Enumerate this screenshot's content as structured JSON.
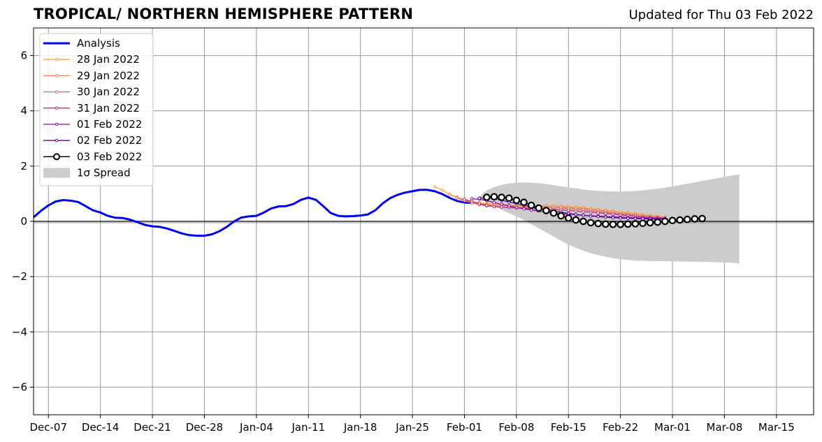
{
  "header": {
    "title": "TROPICAL/ NORTHERN HEMISPHERE PATTERN",
    "updated": "Updated for Thu 03 Feb 2022"
  },
  "chart_data": {
    "type": "line",
    "title": "TROPICAL/ NORTHERN HEMISPHERE PATTERN",
    "xlabel": "",
    "ylabel": "",
    "x_axis": "date",
    "xlim": [
      "2021-12-05",
      "2022-03-20"
    ],
    "ylim": [
      -7,
      7
    ],
    "grid": true,
    "legend_position": "top-left",
    "x_ticks": [
      "2021-12-07",
      "2021-12-14",
      "2021-12-21",
      "2021-12-28",
      "2022-01-04",
      "2022-01-11",
      "2022-01-18",
      "2022-01-25",
      "2022-02-01",
      "2022-02-08",
      "2022-02-15",
      "2022-02-22",
      "2022-03-01",
      "2022-03-08",
      "2022-03-15"
    ],
    "x_tick_labels": [
      "Dec-07",
      "Dec-14",
      "Dec-21",
      "Dec-28",
      "Jan-04",
      "Jan-11",
      "Jan-18",
      "Jan-25",
      "Feb-01",
      "Feb-08",
      "Feb-15",
      "Feb-22",
      "Mar-01",
      "Mar-08",
      "Mar-15"
    ],
    "y_ticks": [
      -6,
      -4,
      -2,
      0,
      2,
      4,
      6
    ],
    "y_tick_labels": [
      "−6",
      "−4",
      "−2",
      "0",
      "2",
      "4",
      "6"
    ],
    "series": [
      {
        "name": "Analysis",
        "color": "#0000ee",
        "marker": "none",
        "points": [
          [
            "2021-12-05",
            0.15
          ],
          [
            "2021-12-06",
            0.38
          ],
          [
            "2021-12-07",
            0.58
          ],
          [
            "2021-12-08",
            0.72
          ],
          [
            "2021-12-09",
            0.77
          ],
          [
            "2021-12-10",
            0.75
          ],
          [
            "2021-12-11",
            0.7
          ],
          [
            "2021-12-12",
            0.55
          ],
          [
            "2021-12-13",
            0.4
          ],
          [
            "2021-12-14",
            0.32
          ],
          [
            "2021-12-15",
            0.2
          ],
          [
            "2021-12-16",
            0.13
          ],
          [
            "2021-12-17",
            0.12
          ],
          [
            "2021-12-18",
            0.06
          ],
          [
            "2021-12-19",
            -0.03
          ],
          [
            "2021-12-20",
            -0.13
          ],
          [
            "2021-12-21",
            -0.18
          ],
          [
            "2021-12-22",
            -0.2
          ],
          [
            "2021-12-23",
            -0.26
          ],
          [
            "2021-12-24",
            -0.35
          ],
          [
            "2021-12-25",
            -0.44
          ],
          [
            "2021-12-26",
            -0.5
          ],
          [
            "2021-12-27",
            -0.52
          ],
          [
            "2021-12-28",
            -0.52
          ],
          [
            "2021-12-29",
            -0.47
          ],
          [
            "2021-12-30",
            -0.36
          ],
          [
            "2021-12-31",
            -0.2
          ],
          [
            "2022-01-01",
            0.0
          ],
          [
            "2022-01-02",
            0.14
          ],
          [
            "2022-01-03",
            0.18
          ],
          [
            "2022-01-04",
            0.2
          ],
          [
            "2022-01-05",
            0.32
          ],
          [
            "2022-01-06",
            0.47
          ],
          [
            "2022-01-07",
            0.54
          ],
          [
            "2022-01-08",
            0.55
          ],
          [
            "2022-01-09",
            0.63
          ],
          [
            "2022-01-10",
            0.78
          ],
          [
            "2022-01-11",
            0.86
          ],
          [
            "2022-01-12",
            0.78
          ],
          [
            "2022-01-13",
            0.55
          ],
          [
            "2022-01-14",
            0.3
          ],
          [
            "2022-01-15",
            0.2
          ],
          [
            "2022-01-16",
            0.18
          ],
          [
            "2022-01-17",
            0.19
          ],
          [
            "2022-01-18",
            0.21
          ],
          [
            "2022-01-19",
            0.25
          ],
          [
            "2022-01-20",
            0.4
          ],
          [
            "2022-01-21",
            0.65
          ],
          [
            "2022-01-22",
            0.84
          ],
          [
            "2022-01-23",
            0.96
          ],
          [
            "2022-01-24",
            1.04
          ],
          [
            "2022-01-25",
            1.09
          ],
          [
            "2022-01-26",
            1.14
          ],
          [
            "2022-01-27",
            1.14
          ],
          [
            "2022-01-28",
            1.09
          ],
          [
            "2022-01-29",
            0.99
          ],
          [
            "2022-01-30",
            0.85
          ],
          [
            "2022-01-31",
            0.74
          ],
          [
            "2022-02-01",
            0.68
          ],
          [
            "2022-02-02",
            0.67
          ]
        ]
      },
      {
        "name": "28 Jan 2022",
        "color": "#fca636",
        "marker": "dot",
        "start": "2022-01-28",
        "values": [
          1.25,
          1.13,
          0.98,
          0.87,
          0.78,
          0.72,
          0.67,
          0.64,
          0.61,
          0.59,
          0.58,
          0.57,
          0.57,
          0.57,
          0.57,
          0.56,
          0.56,
          0.55,
          0.53,
          0.51,
          0.49,
          0.46,
          0.43,
          0.4,
          0.37,
          0.34,
          0.31,
          0.28,
          0.24,
          0.21,
          0.18
        ]
      },
      {
        "name": "29 Jan 2022",
        "color": "#f2844b",
        "marker": "dot",
        "start": "2022-01-30",
        "values": [
          0.97,
          0.87,
          0.77,
          0.69,
          0.64,
          0.61,
          0.59,
          0.58,
          0.57,
          0.56,
          0.55,
          0.55,
          0.55,
          0.55,
          0.54,
          0.53,
          0.51,
          0.49,
          0.47,
          0.44,
          0.41,
          0.38,
          0.35,
          0.32,
          0.29,
          0.26,
          0.23,
          0.2,
          0.17,
          0.15
        ]
      },
      {
        "name": "30 Jan 2022",
        "color": "#e16462",
        "marker": "dot",
        "start": "2022-01-31",
        "values": [
          0.85,
          0.75,
          0.67,
          0.6,
          0.56,
          0.53,
          0.51,
          0.5,
          0.5,
          0.5,
          0.5,
          0.5,
          0.5,
          0.49,
          0.48,
          0.46,
          0.44,
          0.42,
          0.39,
          0.36,
          0.33,
          0.3,
          0.27,
          0.24,
          0.21,
          0.18,
          0.16,
          0.14,
          0.12
        ]
      },
      {
        "name": "31 Jan 2022",
        "color": "#b63679",
        "marker": "dot",
        "start": "2022-02-01",
        "values": [
          0.8,
          0.72,
          0.64,
          0.58,
          0.54,
          0.52,
          0.5,
          0.48,
          0.47,
          0.46,
          0.45,
          0.44,
          0.43,
          0.41,
          0.39,
          0.37,
          0.35,
          0.33,
          0.31,
          0.28,
          0.26,
          0.23,
          0.21,
          0.19,
          0.16,
          0.14,
          0.12,
          0.11
        ]
      },
      {
        "name": "01 Feb 2022",
        "color": "#8f0da4",
        "marker": "dot",
        "start": "2022-02-02",
        "values": [
          0.82,
          0.8,
          0.75,
          0.68,
          0.62,
          0.56,
          0.5,
          0.45,
          0.41,
          0.37,
          0.34,
          0.31,
          0.28,
          0.26,
          0.24,
          0.22,
          0.2,
          0.19,
          0.17,
          0.16,
          0.15,
          0.14,
          0.13,
          0.12,
          0.11,
          0.1,
          0.1
        ]
      },
      {
        "name": "02 Feb 2022",
        "color": "#5c01a6",
        "marker": "dot",
        "start": "2022-02-03",
        "values": [
          0.84,
          0.86,
          0.82,
          0.76,
          0.7,
          0.64,
          0.58,
          0.52,
          0.47,
          0.42,
          0.37,
          0.33,
          0.29,
          0.25,
          0.22,
          0.19,
          0.17,
          0.15,
          0.13,
          0.12,
          0.11,
          0.1,
          0.09,
          0.08,
          0.08,
          0.08
        ]
      },
      {
        "name": "03 Feb 2022",
        "color": "#000000",
        "marker": "open-circle",
        "start": "2022-02-04",
        "values": [
          0.87,
          0.89,
          0.87,
          0.84,
          0.76,
          0.69,
          0.58,
          0.48,
          0.39,
          0.3,
          0.2,
          0.12,
          0.05,
          0.0,
          -0.05,
          -0.08,
          -0.1,
          -0.11,
          -0.11,
          -0.1,
          -0.09,
          -0.07,
          -0.05,
          -0.03,
          0.0,
          0.03,
          0.05,
          0.07,
          0.09,
          0.1
        ]
      }
    ],
    "spread": {
      "name": "1σ Spread",
      "color": "#cccccc",
      "start": "2022-02-03",
      "upper": [
        0.9,
        1.12,
        1.24,
        1.32,
        1.37,
        1.4,
        1.41,
        1.4,
        1.38,
        1.35,
        1.31,
        1.27,
        1.23,
        1.19,
        1.15,
        1.12,
        1.1,
        1.09,
        1.08,
        1.08,
        1.09,
        1.1,
        1.12,
        1.15,
        1.18,
        1.22,
        1.26,
        1.31,
        1.36,
        1.41,
        1.46,
        1.51,
        1.56,
        1.61,
        1.66,
        1.7
      ],
      "lower": [
        0.82,
        0.7,
        0.55,
        0.42,
        0.3,
        0.18,
        0.05,
        -0.1,
        -0.25,
        -0.4,
        -0.55,
        -0.7,
        -0.84,
        -0.96,
        -1.06,
        -1.15,
        -1.22,
        -1.28,
        -1.33,
        -1.37,
        -1.4,
        -1.42,
        -1.43,
        -1.44,
        -1.44,
        -1.44,
        -1.45,
        -1.45,
        -1.46,
        -1.46,
        -1.47,
        -1.47,
        -1.48,
        -1.49,
        -1.5,
        -1.52
      ]
    }
  }
}
